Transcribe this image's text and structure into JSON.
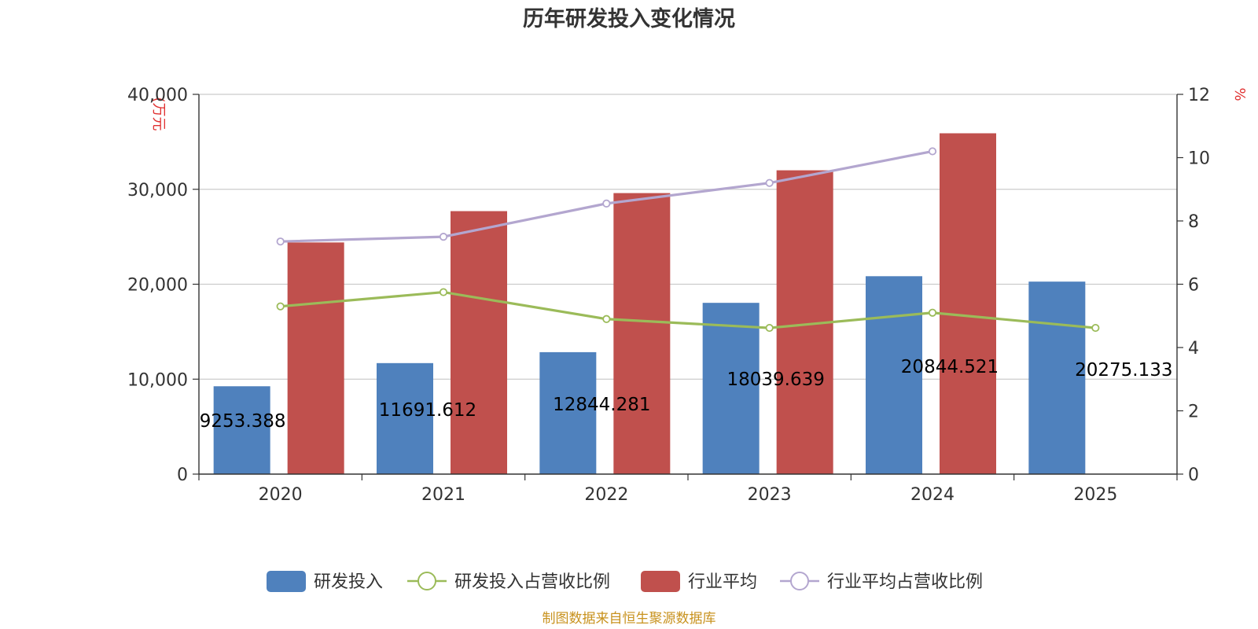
{
  "chart_data": {
    "type": "bar",
    "title": "历年研发投入变化情况",
    "categories": [
      "2020",
      "2021",
      "2022",
      "2023",
      "2024",
      "2025"
    ],
    "y_left": {
      "unit_label": "(万元",
      "ylim": [
        0,
        40000
      ],
      "ticks": [
        "0",
        "10,000",
        "20,000",
        "30,000",
        "40,000"
      ],
      "tick_values": [
        0,
        10000,
        20000,
        30000,
        40000
      ]
    },
    "y_right": {
      "unit_label": "%",
      "ylim": [
        0,
        12
      ],
      "ticks": [
        "0",
        "2",
        "4",
        "6",
        "8",
        "10",
        "12"
      ],
      "tick_values": [
        0,
        2,
        4,
        6,
        8,
        10,
        12
      ]
    },
    "series": [
      {
        "name": "研发投入",
        "kind": "bar",
        "axis": "left",
        "color": "#4f81bd",
        "values": [
          9253.388,
          11691.612,
          12844.281,
          18039.639,
          20844.521,
          20275.133
        ],
        "labels": [
          "9253.388",
          "11691.612",
          "12844.281",
          "18039.639",
          "20844.521",
          "20275.133"
        ]
      },
      {
        "name": "研发投入占营收比例",
        "kind": "line",
        "axis": "right",
        "color": "#9bbb59",
        "values": [
          5.3,
          5.75,
          4.9,
          4.62,
          5.1,
          4.62
        ]
      },
      {
        "name": "行业平均",
        "kind": "bar",
        "axis": "left",
        "color": "#c0504d",
        "values": [
          24400,
          27700,
          29600,
          32000,
          35900,
          null
        ]
      },
      {
        "name": "行业平均占营收比例",
        "kind": "line",
        "axis": "right",
        "color": "#b3a6cf",
        "values": [
          7.35,
          7.5,
          8.55,
          9.2,
          10.2,
          null
        ]
      }
    ],
    "grid": true,
    "legend_position": "bottom"
  },
  "footer": {
    "source": "制图数据来自恒生聚源数据库"
  }
}
